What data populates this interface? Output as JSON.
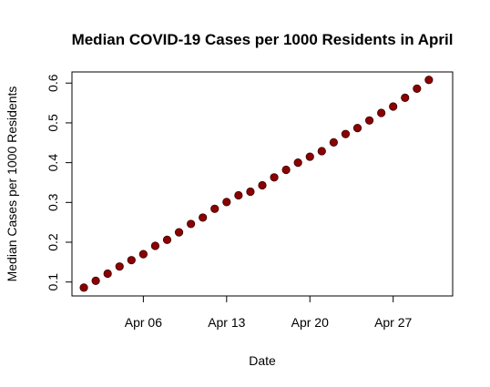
{
  "chart_data": {
    "type": "scatter",
    "title": "Median COVID-19 Cases per 1000 Residents in April",
    "xlabel": "Date",
    "ylabel": "Median Cases per 1000 Residents",
    "x_ticks": [
      {
        "date": "2020-04-06",
        "label": "Apr 06"
      },
      {
        "date": "2020-04-13",
        "label": "Apr 13"
      },
      {
        "date": "2020-04-20",
        "label": "Apr 20"
      },
      {
        "date": "2020-04-27",
        "label": "Apr 27"
      }
    ],
    "y_ticks": [
      "0.1",
      "0.2",
      "0.3",
      "0.4",
      "0.5",
      "0.6"
    ],
    "xlim": [
      "2020-03-31",
      "2020-05-02"
    ],
    "ylim": [
      0.065,
      0.628
    ],
    "grid": false,
    "point_color": "#8B0000",
    "points": [
      {
        "x": "2020-04-01",
        "y": 0.086
      },
      {
        "x": "2020-04-02",
        "y": 0.103
      },
      {
        "x": "2020-04-03",
        "y": 0.121
      },
      {
        "x": "2020-04-04",
        "y": 0.139
      },
      {
        "x": "2020-04-05",
        "y": 0.155
      },
      {
        "x": "2020-04-06",
        "y": 0.17
      },
      {
        "x": "2020-04-07",
        "y": 0.191
      },
      {
        "x": "2020-04-08",
        "y": 0.206
      },
      {
        "x": "2020-04-09",
        "y": 0.225
      },
      {
        "x": "2020-04-10",
        "y": 0.246
      },
      {
        "x": "2020-04-11",
        "y": 0.262
      },
      {
        "x": "2020-04-12",
        "y": 0.284
      },
      {
        "x": "2020-04-13",
        "y": 0.301
      },
      {
        "x": "2020-04-14",
        "y": 0.318
      },
      {
        "x": "2020-04-15",
        "y": 0.327
      },
      {
        "x": "2020-04-16",
        "y": 0.343
      },
      {
        "x": "2020-04-17",
        "y": 0.363
      },
      {
        "x": "2020-04-18",
        "y": 0.382
      },
      {
        "x": "2020-04-19",
        "y": 0.4
      },
      {
        "x": "2020-04-20",
        "y": 0.415
      },
      {
        "x": "2020-04-21",
        "y": 0.429
      },
      {
        "x": "2020-04-22",
        "y": 0.451
      },
      {
        "x": "2020-04-23",
        "y": 0.472
      },
      {
        "x": "2020-04-24",
        "y": 0.487
      },
      {
        "x": "2020-04-25",
        "y": 0.506
      },
      {
        "x": "2020-04-26",
        "y": 0.525
      },
      {
        "x": "2020-04-27",
        "y": 0.541
      },
      {
        "x": "2020-04-28",
        "y": 0.563
      },
      {
        "x": "2020-04-29",
        "y": 0.586
      },
      {
        "x": "2020-04-30",
        "y": 0.608
      }
    ]
  }
}
